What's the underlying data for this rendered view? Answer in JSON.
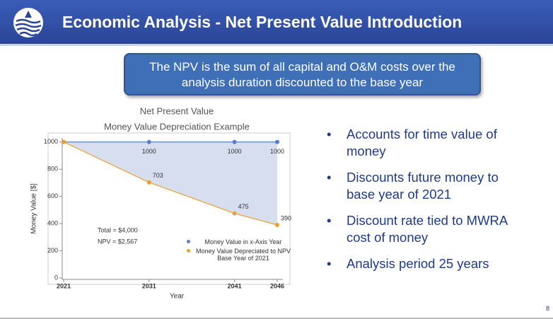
{
  "header": {
    "title": "Economic Analysis - Net Present Value Introduction"
  },
  "callout": "The NPV is the sum of all capital and O&M costs over the analysis duration discounted to the base year",
  "chart_data": {
    "type": "line",
    "title": "Net Present Value",
    "subtitle": "Money Value Depreciation Example",
    "x_label": "Year",
    "y_label": "Money Value [$]",
    "x": [
      2021,
      2031,
      2041,
      2046
    ],
    "xlim": [
      2021,
      2046
    ],
    "xticks": [
      2021,
      2031,
      2041,
      2046
    ],
    "ylim": [
      0,
      1030
    ],
    "yticks": [
      0,
      200,
      400,
      600,
      800,
      1000
    ],
    "series": [
      {
        "name": "Money Value in x-Axis Year",
        "color": "#5b7fc7",
        "values": [
          1000,
          1000,
          1000,
          1000
        ],
        "value_labels": [
          null,
          "1000",
          "1000",
          "1000"
        ]
      },
      {
        "name": "Money Value Depreciated to NPV Base Year of 2021",
        "color": "#e8a030",
        "values": [
          1000,
          703,
          475,
          390
        ],
        "value_labels": [
          null,
          "703",
          "475",
          "390"
        ]
      }
    ],
    "annotations": [
      "Total = $4,000",
      "NPV = $2,567"
    ],
    "legend": "lower right"
  },
  "bullets": [
    "Accounts for time value of money",
    "Discounts future money to base year of 2021",
    "Discount rate tied to MWRA cost of money",
    "Analysis period 25 years"
  ],
  "page_number": "8"
}
